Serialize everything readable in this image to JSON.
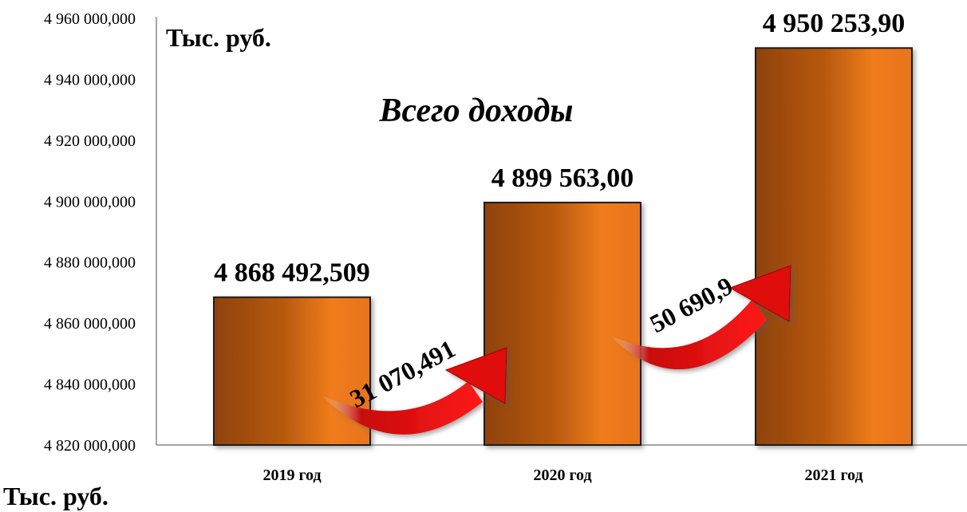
{
  "chart_data": {
    "type": "bar",
    "title": "Всего доходы",
    "unit_label": "Тыс. руб.",
    "ylabel": "Тыс. руб.",
    "categories": [
      "2019 год",
      "2020 год",
      "2021 год"
    ],
    "values": [
      4868492.509,
      4899563.0,
      4950253.9
    ],
    "value_labels": [
      "4 868 492,509",
      "4 899 563,00",
      "4 950 253,90"
    ],
    "ylim": [
      4820000,
      4960000
    ],
    "yticks": [
      4820000,
      4840000,
      4860000,
      4880000,
      4900000,
      4920000,
      4940000,
      4960000
    ],
    "ytick_labels": [
      "4 820 000,000",
      "4 840 000,000",
      "4 860 000,000",
      "4 880 000,000",
      "4 900 000,000",
      "4 920 000,000",
      "4 940 000,000",
      "4 960 000,000"
    ],
    "annotations": [
      {
        "from": 0,
        "to": 1,
        "text": "31 070,491"
      },
      {
        "from": 1,
        "to": 2,
        "text": "50 690,9"
      }
    ],
    "colors": {
      "bar_dark": "#9e4a0c",
      "bar_light": "#f07c1a",
      "bar_edge": "#1a1a1a",
      "arrow": "#e01010",
      "arrow_dark": "#a00000"
    },
    "grid": false
  }
}
